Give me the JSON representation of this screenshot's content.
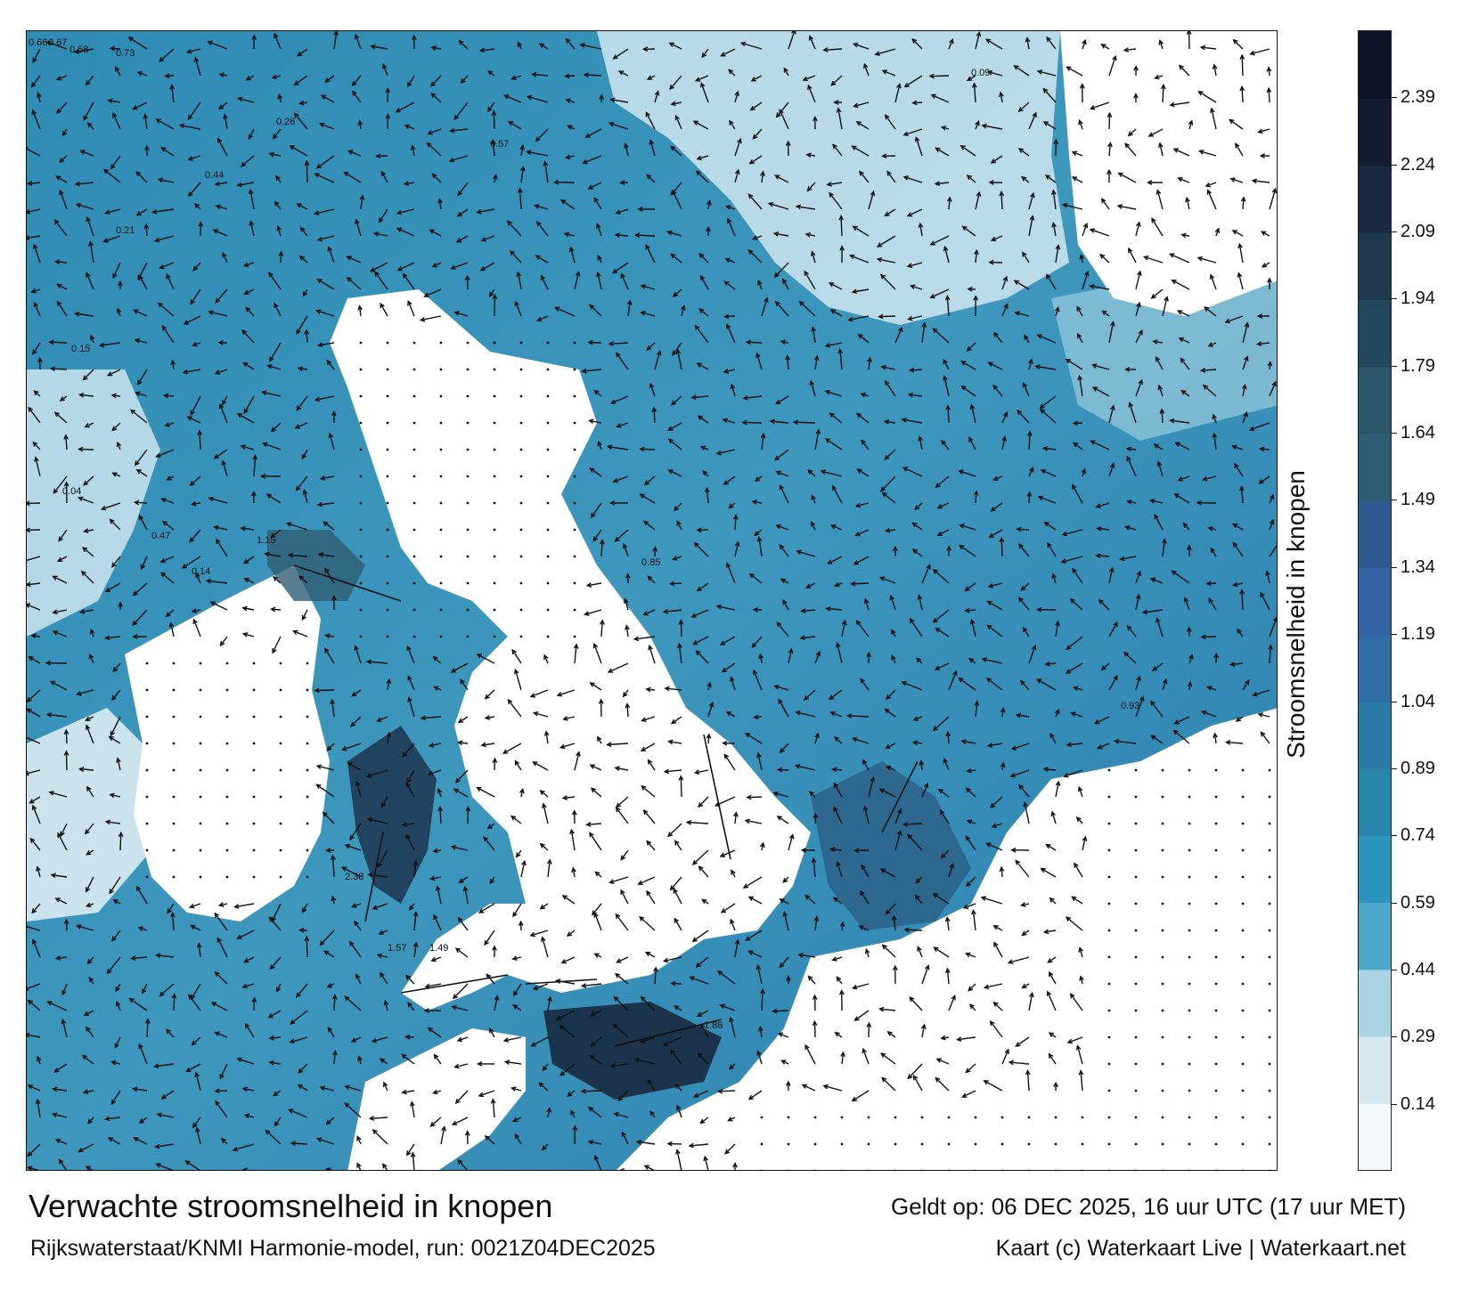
{
  "title": "Verwachte stroomsnelheid in knopen",
  "validity": "Geldt op: 06 DEC 2025, 16 uur UTC (17 uur MET)",
  "model": "Rijkswaterstaat/KNMI Harmonie-model, run: 0021Z04DEC2025",
  "credit": "Kaart (c) Waterkaart Live | Waterkaart.net",
  "colorbar": {
    "label": "Stroomsnelheid in knopen",
    "ticks": [
      "0.14",
      "0.29",
      "0.44",
      "0.59",
      "0.74",
      "0.89",
      "1.04",
      "1.19",
      "1.34",
      "1.49",
      "1.64",
      "1.79",
      "1.94",
      "2.09",
      "2.24",
      "2.39"
    ],
    "colors": [
      "#f3f8fb",
      "#d2e7ef",
      "#a9d3e3",
      "#4aa7c9",
      "#2b93bd",
      "#2785ae",
      "#2b7aa7",
      "#2f6ea6",
      "#3363a4",
      "#2f5a92",
      "#2e5e73",
      "#2a5668",
      "#24495f",
      "#1e3a4f",
      "#172a40",
      "#121d33",
      "#0c1428"
    ]
  },
  "map": {
    "land_color": "#ffffff",
    "arrow_color": "#111111",
    "sample_labels": [
      {
        "text": "0.66"
      },
      {
        "text": "0.67"
      },
      {
        "text": "0.68"
      },
      {
        "text": "0.73"
      },
      {
        "text": "1.57"
      },
      {
        "text": "1.49"
      },
      {
        "text": "2.38"
      },
      {
        "text": "0.85"
      },
      {
        "text": "0.93"
      },
      {
        "text": "0.47"
      },
      {
        "text": "0.21"
      },
      {
        "text": "0.14"
      },
      {
        "text": "1.15"
      },
      {
        "text": "0.44"
      },
      {
        "text": "0.57"
      },
      {
        "text": "0.26"
      },
      {
        "text": "0.04"
      },
      {
        "text": "0.15"
      },
      {
        "text": "0.09"
      },
      {
        "text": "1.86"
      }
    ]
  }
}
